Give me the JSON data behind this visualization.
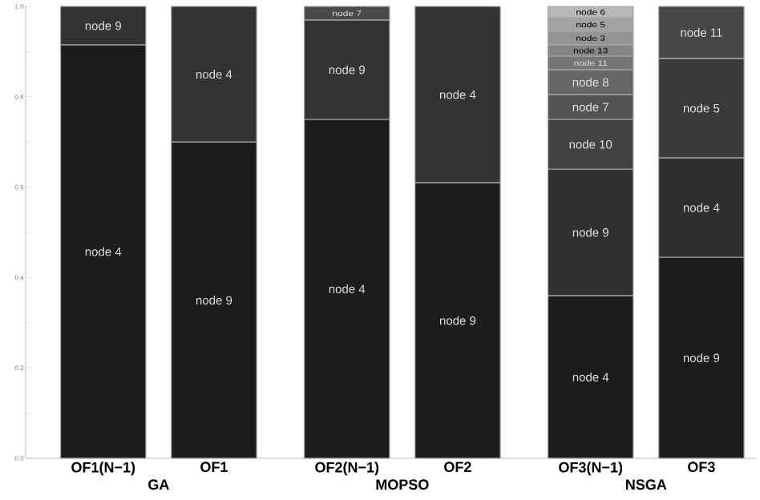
{
  "chart_data": {
    "type": "bar",
    "stacked": true,
    "categories": [
      "OF1(N−1)",
      "OF1",
      "OF2(N−1)",
      "OF2",
      "OF3(N−1)",
      "OF3"
    ],
    "series": [
      {
        "values": [
          0.915,
          0.7,
          0.75,
          0.61,
          0.36,
          0.445
        ],
        "colors": [
          "#1c1c1c",
          "#1c1c1c",
          "#1c1c1c",
          "#1c1c1c",
          "#1c1c1c",
          "#1c1c1c"
        ],
        "value_labels": [
          "node 4",
          "node 9",
          "node 4",
          "node 9",
          "node 4",
          "node 9"
        ]
      },
      {
        "values": [
          0.085,
          0.3,
          0.22,
          0.39,
          0.28,
          0.22
        ],
        "colors": [
          "#333333",
          "#333333",
          "#333333",
          "#333333",
          "#303030",
          "#2e2e2e"
        ],
        "value_labels": [
          "node 9",
          "node 4",
          "node 9",
          "node 4",
          "node 9",
          "node 4"
        ]
      },
      {
        "values": [
          null,
          null,
          0.03,
          null,
          0.11,
          0.22
        ],
        "colors": [
          null,
          null,
          "#4a4a4a",
          null,
          "#424242",
          "#3a3a3a"
        ],
        "value_labels": [
          null,
          null,
          "node 7",
          null,
          "node 10",
          "node 5"
        ]
      },
      {
        "values": [
          null,
          null,
          null,
          null,
          0.055,
          0.115
        ],
        "colors": [
          null,
          null,
          null,
          null,
          "#545454",
          "#474747"
        ],
        "value_labels": [
          null,
          null,
          null,
          null,
          "node 7",
          "node 11"
        ]
      },
      {
        "values": [
          null,
          null,
          null,
          null,
          0.055,
          null
        ],
        "colors": [
          null,
          null,
          null,
          null,
          "#666666",
          null
        ],
        "value_labels": [
          null,
          null,
          null,
          null,
          "node 8",
          null
        ]
      },
      {
        "values": [
          null,
          null,
          null,
          null,
          0.03,
          null
        ],
        "colors": [
          null,
          null,
          null,
          null,
          "#767676",
          null
        ],
        "value_labels": [
          null,
          null,
          null,
          null,
          "node 11",
          null
        ]
      },
      {
        "values": [
          null,
          null,
          null,
          null,
          0.025,
          null
        ],
        "colors": [
          null,
          null,
          null,
          null,
          "#858585",
          null
        ],
        "value_labels": [
          null,
          null,
          null,
          null,
          "node 13",
          null
        ]
      },
      {
        "values": [
          null,
          null,
          null,
          null,
          0.03,
          null
        ],
        "colors": [
          null,
          null,
          null,
          null,
          "#949494",
          null
        ],
        "value_labels": [
          null,
          null,
          null,
          null,
          "node 3",
          null
        ]
      },
      {
        "values": [
          null,
          null,
          null,
          null,
          0.03,
          null
        ],
        "colors": [
          null,
          null,
          null,
          null,
          "#a3a3a3",
          null
        ],
        "value_labels": [
          null,
          null,
          null,
          null,
          "node 5",
          null
        ]
      },
      {
        "values": [
          null,
          null,
          null,
          null,
          0.025,
          null
        ],
        "colors": [
          null,
          null,
          null,
          null,
          "#b8b8b8",
          null
        ],
        "value_labels": [
          null,
          null,
          null,
          null,
          "node 6",
          null
        ]
      }
    ],
    "annotations": [
      "GA",
      "MOPSO",
      "NSGA"
    ],
    "ylim": [
      0,
      1.0
    ],
    "yticks": [
      {
        "value": 0,
        "label": "0.0"
      },
      {
        "value": 0.2,
        "label": "0.2"
      },
      {
        "value": 0.4,
        "label": "0.4"
      },
      {
        "value": 0.6,
        "label": "0.6"
      },
      {
        "value": 0.8,
        "label": "0.8"
      },
      {
        "value": 1.0,
        "label": "1.0"
      }
    ],
    "grid": false
  }
}
